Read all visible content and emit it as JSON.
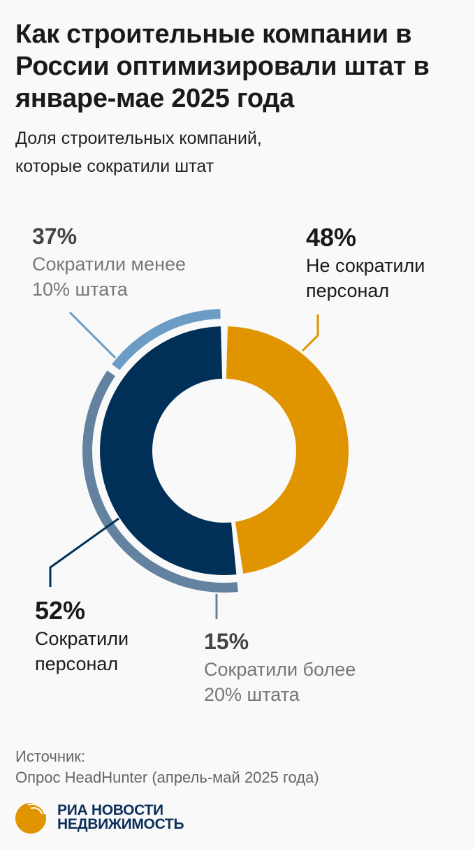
{
  "title": "Как строительные компании в России оптимизировали штат в январе-мае 2025 года",
  "subtitle_line1": "Доля строительных компаний,",
  "subtitle_line2": "которые сократили штат",
  "chart_data": {
    "type": "pie",
    "variant": "donut with outer sub-ring",
    "inner": [
      {
        "label": "Не сократили персонал",
        "value": 48,
        "color": "#e09500"
      },
      {
        "label": "Сократили персонал",
        "value": 52,
        "color": "#003057"
      }
    ],
    "outer": [
      {
        "label": "Сократили менее 10% штата",
        "value": 37,
        "color": "#62829f"
      },
      {
        "label": "Сократили более 20% штата",
        "value": 15,
        "color": "#6a9cc6"
      }
    ]
  },
  "labels": {
    "not_cut": {
      "pct": "48%",
      "line1": "Не сократили",
      "line2": "персонал"
    },
    "cut": {
      "pct": "52%",
      "line1": "Сократили",
      "line2": "персонал"
    },
    "less10": {
      "pct": "37%",
      "line1": "Сократили менее",
      "line2": "10% штата"
    },
    "more20": {
      "pct": "15%",
      "line1": "Сократили более",
      "line2": "20% штата"
    }
  },
  "source": {
    "label": "Источник:",
    "text": "Опрос HeadHunter (апрель-май 2025 года)"
  },
  "logo": {
    "line1": "РИА НОВОСТИ",
    "line2": "НЕДВИЖИМОСТЬ"
  }
}
